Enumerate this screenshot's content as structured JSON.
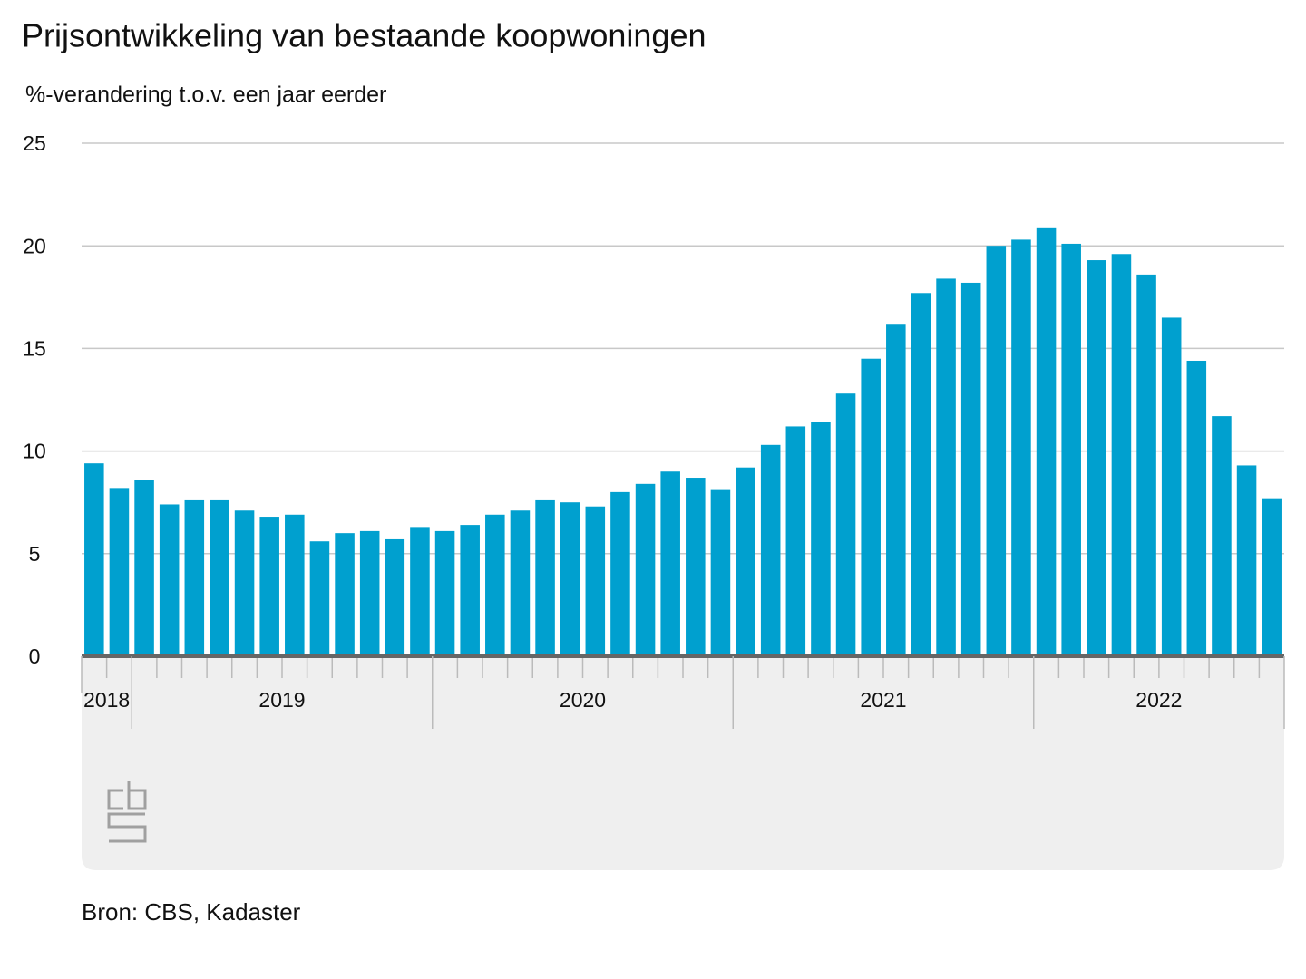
{
  "chart_data": {
    "type": "bar",
    "title": "Prijsontwikkeling van bestaande koopwoningen",
    "subtitle": "%-verandering t.o.v. een jaar eerder",
    "source": "Bron: CBS, Kadaster",
    "categories": [
      null,
      null,
      null,
      null,
      null,
      null,
      null,
      null,
      null,
      null,
      null,
      null,
      null,
      null,
      null,
      null,
      null,
      null,
      null,
      null,
      null,
      null,
      null,
      null,
      null,
      null,
      null,
      null,
      null,
      null,
      null,
      null,
      null,
      null,
      null,
      null,
      null,
      null,
      null,
      null,
      null,
      null,
      null,
      null,
      null,
      null,
      null,
      null
    ],
    "x_groups": [
      {
        "label": "2018",
        "count": 2
      },
      {
        "label": "2019",
        "count": 12
      },
      {
        "label": "2020",
        "count": 12
      },
      {
        "label": "2021",
        "count": 12
      },
      {
        "label": "2022",
        "count": 10
      }
    ],
    "values": [
      9.4,
      8.2,
      8.6,
      7.4,
      7.6,
      7.6,
      7.1,
      6.8,
      6.9,
      5.6,
      6.0,
      6.1,
      5.7,
      6.3,
      6.1,
      6.4,
      6.9,
      7.1,
      7.6,
      7.5,
      7.3,
      8.0,
      8.4,
      9.0,
      8.7,
      8.1,
      9.2,
      10.3,
      11.2,
      11.4,
      12.8,
      14.5,
      16.2,
      17.7,
      18.4,
      18.2,
      20.0,
      20.3,
      20.9,
      20.1,
      19.3,
      19.6,
      18.6,
      16.5,
      14.4,
      11.7,
      9.3,
      7.7
    ],
    "color": "#00a0cf",
    "ylim": [
      0,
      25
    ],
    "yticks": [
      0,
      5,
      10,
      15,
      20,
      25
    ],
    "grid": true
  }
}
